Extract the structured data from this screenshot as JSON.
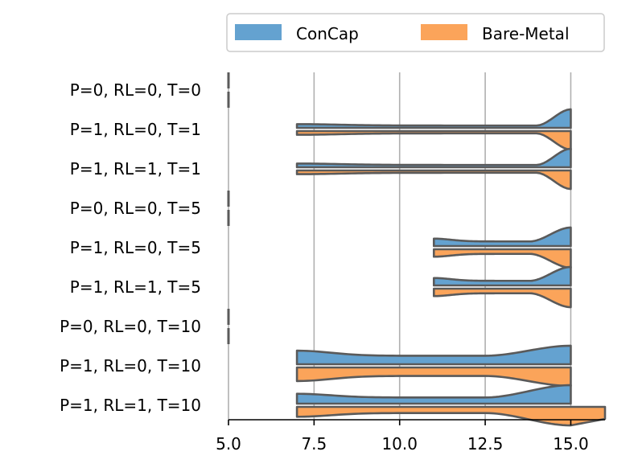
{
  "chart_data": {
    "type": "violin",
    "orientation": "horizontal",
    "split": true,
    "xlim": [
      5.0,
      16.0
    ],
    "xticks": [
      5.0,
      7.5,
      10.0,
      12.5,
      15.0
    ],
    "xtick_labels": [
      "5.0",
      "7.5",
      "10.0",
      "12.5",
      "15.0"
    ],
    "grid": "vertical",
    "legend": {
      "placement": "top-right",
      "entries": [
        {
          "label": "ConCap",
          "color": "#64a2d0"
        },
        {
          "label": "Bare-Metal",
          "color": "#fba45a"
        }
      ]
    },
    "categories": [
      "P=0, RL=0, T=0",
      "P=1, RL=0, T=1",
      "P=1, RL=1, T=1",
      "P=0, RL=0, T=5",
      "P=1, RL=0, T=5",
      "P=1, RL=1, T=5",
      "P=0, RL=0, T=10",
      "P=1, RL=0, T=10",
      "P=1, RL=1, T=10"
    ],
    "series": [
      {
        "name": "ConCap",
        "ranges": [
          [
            5.0,
            5.0
          ],
          [
            7.0,
            15.0
          ],
          [
            7.0,
            15.0
          ],
          [
            5.0,
            5.0
          ],
          [
            11.0,
            15.0
          ],
          [
            11.0,
            15.0
          ],
          [
            5.0,
            5.0
          ],
          [
            7.0,
            15.0
          ],
          [
            7.0,
            15.0
          ]
        ],
        "tail_width": [
          0.0,
          0.06,
          0.06,
          0.0,
          0.12,
          0.12,
          0.0,
          0.22,
          0.16
        ],
        "peak_width": [
          0.0,
          0.48,
          0.48,
          0.0,
          0.48,
          0.48,
          0.0,
          0.48,
          0.48
        ],
        "rise_start": [
          5.0,
          14.0,
          14.0,
          5.0,
          13.8,
          13.8,
          5.0,
          12.5,
          12.5
        ]
      },
      {
        "name": "Bare-Metal",
        "ranges": [
          [
            5.0,
            5.0
          ],
          [
            7.0,
            15.0
          ],
          [
            7.0,
            15.0
          ],
          [
            5.0,
            5.0
          ],
          [
            11.0,
            15.0
          ],
          [
            11.0,
            15.0
          ],
          [
            5.0,
            5.0
          ],
          [
            7.0,
            15.0
          ],
          [
            7.0,
            16.0
          ]
        ],
        "tail_width": [
          0.0,
          0.06,
          0.06,
          0.0,
          0.12,
          0.12,
          0.0,
          0.22,
          0.16
        ],
        "peak_width": [
          0.0,
          0.48,
          0.48,
          0.0,
          0.48,
          0.48,
          0.0,
          0.48,
          0.48
        ],
        "rise_start": [
          5.0,
          14.0,
          14.0,
          5.0,
          13.8,
          13.8,
          5.0,
          12.5,
          12.5
        ]
      }
    ],
    "colors": {
      "outline": "#5a5a5a",
      "grid": "#b0b0b0",
      "axis": "#000000"
    }
  }
}
